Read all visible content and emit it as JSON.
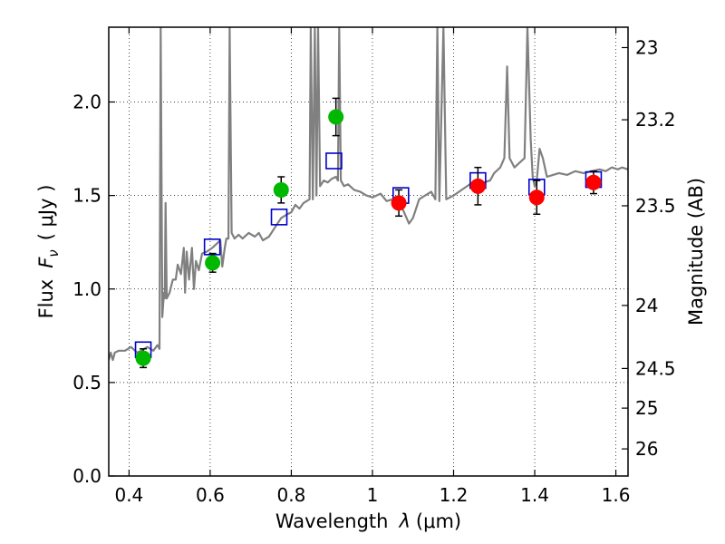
{
  "chart_data": {
    "type": "line",
    "xlabel_main": "Wavelength",
    "xlabel_symbol": "λ",
    "xlabel_unit": "(μm)",
    "ylabel_main": "Flux",
    "ylabel_symbol": "F",
    "ylabel_subscript": "ν",
    "ylabel_unit": "( μJy )",
    "y2label": "Magnitude (AB)",
    "xlim": [
      0.35,
      1.63
    ],
    "ylim": [
      0.0,
      2.4
    ],
    "x_ticks": [
      0.4,
      0.6,
      0.8,
      1.0,
      1.2,
      1.4,
      1.6
    ],
    "x_tick_labels": [
      "0.4",
      "0.6",
      "0.8",
      "1",
      "1.2",
      "1.4",
      "1.6"
    ],
    "y_ticks": [
      0.0,
      0.5,
      1.0,
      1.5,
      2.0
    ],
    "y_tick_labels": [
      "0.0",
      "0.5",
      "1.0",
      "1.5",
      "2.0"
    ],
    "y2_ticks": [
      {
        "mag": "23",
        "flux": 2.291
      },
      {
        "mag": "23.2",
        "flux": 1.905
      },
      {
        "mag": "23.5",
        "flux": 1.445
      },
      {
        "mag": "24",
        "flux": 0.912
      },
      {
        "mag": "24.5",
        "flux": 0.575
      },
      {
        "mag": "25",
        "flux": 0.363
      },
      {
        "mag": "26",
        "flux": 0.145
      }
    ],
    "grid": true,
    "colors": {
      "model": "#808080",
      "green": "#00b800",
      "red": "#ff0000",
      "model_box": "#0000cc",
      "errorbar": "#000000"
    },
    "series": [
      {
        "kind": "model-spectrum",
        "points": [
          [
            0.35,
            0.62
          ],
          [
            0.355,
            0.66
          ],
          [
            0.36,
            0.62
          ],
          [
            0.365,
            0.66
          ],
          [
            0.375,
            0.67
          ],
          [
            0.39,
            0.67
          ],
          [
            0.405,
            0.69
          ],
          [
            0.42,
            0.66
          ],
          [
            0.43,
            0.67
          ],
          [
            0.445,
            0.69
          ],
          [
            0.46,
            0.67
          ],
          [
            0.47,
            0.7
          ],
          [
            0.475,
            0.68
          ],
          [
            0.478,
            2.4
          ],
          [
            0.482,
            0.85
          ],
          [
            0.486,
            0.98
          ],
          [
            0.488,
            0.95
          ],
          [
            0.49,
            1.46
          ],
          [
            0.493,
            0.95
          ],
          [
            0.5,
            0.98
          ],
          [
            0.508,
            1.05
          ],
          [
            0.515,
            1.05
          ],
          [
            0.52,
            1.13
          ],
          [
            0.528,
            1.08
          ],
          [
            0.535,
            1.22
          ],
          [
            0.538,
            0.98
          ],
          [
            0.542,
            1.2
          ],
          [
            0.548,
            1.05
          ],
          [
            0.555,
            1.22
          ],
          [
            0.56,
            1.0
          ],
          [
            0.565,
            1.15
          ],
          [
            0.572,
            1.1
          ],
          [
            0.58,
            1.19
          ],
          [
            0.592,
            1.2
          ],
          [
            0.605,
            1.22
          ],
          [
            0.615,
            1.24
          ],
          [
            0.625,
            1.26
          ],
          [
            0.63,
            1.12
          ],
          [
            0.636,
            1.22
          ],
          [
            0.64,
            1.27
          ],
          [
            0.645,
            1.27
          ],
          [
            0.648,
            2.4
          ],
          [
            0.653,
            1.3
          ],
          [
            0.66,
            1.27
          ],
          [
            0.67,
            1.29
          ],
          [
            0.68,
            1.27
          ],
          [
            0.695,
            1.3
          ],
          [
            0.71,
            1.28
          ],
          [
            0.72,
            1.3
          ],
          [
            0.73,
            1.26
          ],
          [
            0.745,
            1.28
          ],
          [
            0.76,
            1.33
          ],
          [
            0.775,
            1.38
          ],
          [
            0.79,
            1.4
          ],
          [
            0.8,
            1.41
          ],
          [
            0.81,
            1.45
          ],
          [
            0.82,
            1.43
          ],
          [
            0.83,
            1.46
          ],
          [
            0.845,
            1.48
          ],
          [
            0.848,
            2.4
          ],
          [
            0.853,
            1.48
          ],
          [
            0.858,
            2.4
          ],
          [
            0.862,
            1.5
          ],
          [
            0.866,
            2.4
          ],
          [
            0.871,
            1.55
          ],
          [
            0.88,
            1.58
          ],
          [
            0.89,
            1.57
          ],
          [
            0.9,
            1.59
          ],
          [
            0.91,
            1.6
          ],
          [
            0.915,
            1.58
          ],
          [
            0.918,
            2.4
          ],
          [
            0.922,
            1.58
          ],
          [
            0.93,
            1.55
          ],
          [
            0.94,
            1.56
          ],
          [
            0.955,
            1.53
          ],
          [
            0.97,
            1.52
          ],
          [
            0.985,
            1.5
          ],
          [
            1.0,
            1.49
          ],
          [
            1.02,
            1.51
          ],
          [
            1.035,
            1.47
          ],
          [
            1.05,
            1.48
          ],
          [
            1.07,
            1.45
          ],
          [
            1.09,
            1.35
          ],
          [
            1.1,
            1.38
          ],
          [
            1.115,
            1.48
          ],
          [
            1.13,
            1.5
          ],
          [
            1.145,
            1.52
          ],
          [
            1.155,
            1.48
          ],
          [
            1.16,
            2.4
          ],
          [
            1.165,
            1.47
          ],
          [
            1.175,
            2.4
          ],
          [
            1.182,
            1.48
          ],
          [
            1.2,
            1.5
          ],
          [
            1.22,
            1.53
          ],
          [
            1.24,
            1.56
          ],
          [
            1.26,
            1.58
          ],
          [
            1.275,
            1.57
          ],
          [
            1.29,
            1.58
          ],
          [
            1.3,
            1.62
          ],
          [
            1.315,
            1.65
          ],
          [
            1.325,
            1.7
          ],
          [
            1.332,
            2.19
          ],
          [
            1.338,
            1.7
          ],
          [
            1.35,
            1.65
          ],
          [
            1.36,
            1.67
          ],
          [
            1.375,
            1.7
          ],
          [
            1.382,
            2.4
          ],
          [
            1.39,
            1.8
          ],
          [
            1.395,
            1.6
          ],
          [
            1.4,
            1.55
          ],
          [
            1.405,
            1.58
          ],
          [
            1.412,
            1.75
          ],
          [
            1.42,
            1.7
          ],
          [
            1.43,
            1.6
          ],
          [
            1.445,
            1.61
          ],
          [
            1.46,
            1.62
          ],
          [
            1.48,
            1.61
          ],
          [
            1.5,
            1.63
          ],
          [
            1.52,
            1.62
          ],
          [
            1.54,
            1.63
          ],
          [
            1.56,
            1.64
          ],
          [
            1.575,
            1.63
          ],
          [
            1.59,
            1.65
          ],
          [
            1.605,
            1.64
          ],
          [
            1.615,
            1.65
          ],
          [
            1.63,
            1.64
          ]
        ]
      },
      {
        "kind": "green-photometry",
        "points": [
          {
            "x": 0.435,
            "y": 0.63,
            "err": 0.05
          },
          {
            "x": 0.606,
            "y": 1.14,
            "err": 0.05
          },
          {
            "x": 0.775,
            "y": 1.53,
            "err": 0.07
          },
          {
            "x": 0.91,
            "y": 1.92,
            "err": 0.1
          }
        ]
      },
      {
        "kind": "red-photometry",
        "points": [
          {
            "x": 1.065,
            "y": 1.46,
            "err": 0.07
          },
          {
            "x": 1.26,
            "y": 1.55,
            "err": 0.1
          },
          {
            "x": 1.405,
            "y": 1.49,
            "err": 0.09
          },
          {
            "x": 1.545,
            "y": 1.57,
            "err": 0.06
          }
        ]
      },
      {
        "kind": "model-boxes",
        "points": [
          {
            "x": 0.435,
            "y": 0.675
          },
          {
            "x": 0.605,
            "y": 1.225
          },
          {
            "x": 0.77,
            "y": 1.385
          },
          {
            "x": 0.905,
            "y": 1.685
          },
          {
            "x": 1.07,
            "y": 1.5
          },
          {
            "x": 1.26,
            "y": 1.58
          },
          {
            "x": 1.405,
            "y": 1.545
          },
          {
            "x": 1.545,
            "y": 1.585
          }
        ]
      }
    ]
  }
}
